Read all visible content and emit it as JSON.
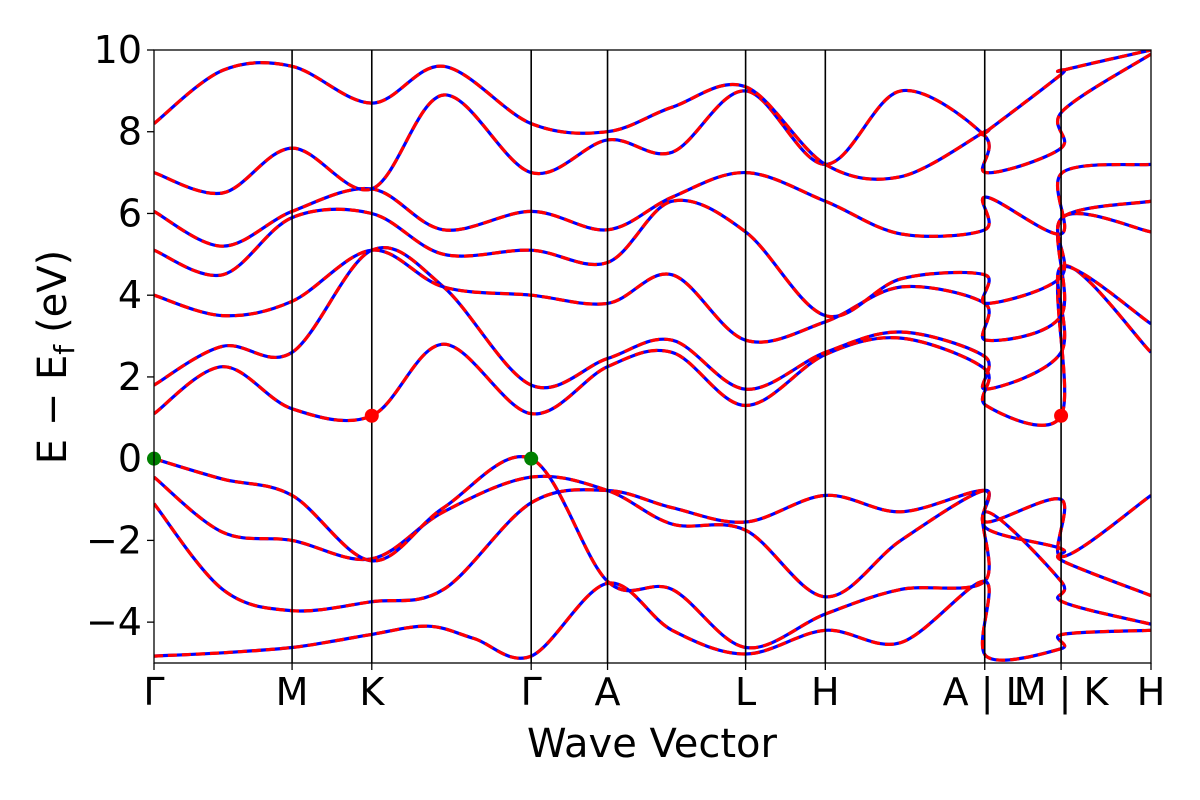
{
  "chart_data": {
    "type": "line",
    "title": "",
    "xlabel": "Wave Vector",
    "ylabel": "E − E",
    "ylabel_subscript": "f",
    "ylabel_unit": "(eV)",
    "ylim": [
      -5,
      10
    ],
    "yticks": [
      -4,
      -2,
      0,
      2,
      4,
      6,
      8,
      10
    ],
    "ytick_labels": [
      "−4",
      "−2",
      "0",
      "2",
      "4",
      "6",
      "8",
      "10"
    ],
    "xlim": [
      0,
      6.542
    ],
    "high_symmetry_points": [
      {
        "label": "Γ",
        "x": 0.0
      },
      {
        "label": "M",
        "x": 0.906
      },
      {
        "label": "K",
        "x": 1.429
      },
      {
        "label": "Γ",
        "x": 2.475
      },
      {
        "label": "A",
        "x": 2.976
      },
      {
        "label": "L",
        "x": 3.882
      },
      {
        "label": "H",
        "x": 4.405
      },
      {
        "label": "A | L",
        "x": 5.451
      },
      {
        "label": "M | K",
        "x": 5.952
      },
      {
        "label": "H",
        "x": 6.542
      }
    ],
    "grid": false,
    "line_colors": {
      "spin_up": "#0000ff",
      "spin_down": "#ff0000"
    },
    "band_edges": [
      {
        "kind": "VBM",
        "x": 0.0,
        "y": 0.0,
        "color": "#008000"
      },
      {
        "kind": "VBM",
        "x": 2.475,
        "y": 0.0,
        "color": "#008000"
      },
      {
        "kind": "CBM",
        "x": 1.429,
        "y": 1.05,
        "color": "#ff0000"
      },
      {
        "kind": "CBM",
        "x": 5.952,
        "y": 1.05,
        "color": "#ff0000"
      }
    ],
    "series": [
      {
        "name": "",
        "values": [
          [
            0,
            -4.83
          ],
          [
            0.45,
            -4.75
          ],
          [
            0.906,
            -4.62
          ],
          [
            1.2,
            -4.45
          ],
          [
            1.429,
            -4.3
          ],
          [
            1.8,
            -4.1
          ],
          [
            2.1,
            -4.4
          ],
          [
            2.475,
            -4.83
          ],
          [
            2.976,
            -3.05
          ],
          [
            3.4,
            -4.2
          ],
          [
            3.882,
            -4.78
          ],
          [
            4.405,
            -4.2
          ],
          [
            4.9,
            -4.5
          ],
          [
            5.451,
            -3.0
          ],
          [
            5.46,
            -4.83
          ],
          [
            5.952,
            -4.65
          ],
          [
            5.96,
            -4.3
          ],
          [
            6.542,
            -4.2
          ]
        ]
      },
      {
        "name": "",
        "values": [
          [
            0,
            -1.1
          ],
          [
            0.45,
            -3.2
          ],
          [
            0.906,
            -3.72
          ],
          [
            1.429,
            -3.5
          ],
          [
            1.9,
            -3.2
          ],
          [
            2.475,
            -1.08
          ],
          [
            2.976,
            -0.78
          ],
          [
            3.4,
            -1.2
          ],
          [
            3.882,
            -1.55
          ],
          [
            4.405,
            -0.9
          ],
          [
            4.9,
            -1.3
          ],
          [
            5.451,
            -0.78
          ],
          [
            5.46,
            -1.55
          ],
          [
            5.952,
            -1.0
          ],
          [
            5.96,
            -2.4
          ],
          [
            6.542,
            -0.9
          ]
        ]
      },
      {
        "name": "",
        "values": [
          [
            0,
            -0.45
          ],
          [
            0.45,
            -1.8
          ],
          [
            0.906,
            -2.0
          ],
          [
            1.429,
            -2.45
          ],
          [
            1.9,
            -1.3
          ],
          [
            2.475,
            -0.45
          ],
          [
            2.976,
            -0.78
          ],
          [
            3.4,
            -1.6
          ],
          [
            3.882,
            -1.75
          ],
          [
            4.405,
            -3.38
          ],
          [
            4.9,
            -2.0
          ],
          [
            5.451,
            -0.78
          ],
          [
            5.46,
            -1.7
          ],
          [
            5.952,
            -2.2
          ],
          [
            5.96,
            -2.5
          ],
          [
            6.542,
            -3.35
          ]
        ]
      },
      {
        "name": "",
        "values": [
          [
            0,
            0.0
          ],
          [
            0.45,
            -0.5
          ],
          [
            0.906,
            -0.9
          ],
          [
            1.429,
            -2.5
          ],
          [
            1.9,
            -1.2
          ],
          [
            2.475,
            0.0
          ],
          [
            2.976,
            -3.0
          ],
          [
            3.4,
            -3.2
          ],
          [
            3.882,
            -4.62
          ],
          [
            4.405,
            -3.8
          ],
          [
            4.9,
            -3.2
          ],
          [
            5.451,
            -3.0
          ],
          [
            5.46,
            -1.3
          ],
          [
            5.952,
            -3.0
          ],
          [
            5.96,
            -3.5
          ],
          [
            6.542,
            -4.05
          ]
        ]
      },
      {
        "name": "",
        "values": [
          [
            0,
            1.1
          ],
          [
            0.45,
            2.25
          ],
          [
            0.906,
            1.22
          ],
          [
            1.429,
            1.05
          ],
          [
            1.9,
            2.8
          ],
          [
            2.475,
            1.1
          ],
          [
            2.976,
            2.25
          ],
          [
            3.4,
            2.6
          ],
          [
            3.882,
            1.3
          ],
          [
            4.405,
            2.55
          ],
          [
            4.9,
            2.95
          ],
          [
            5.451,
            2.2
          ],
          [
            5.46,
            1.3
          ],
          [
            5.952,
            1.05
          ],
          [
            5.96,
            4.7
          ],
          [
            6.542,
            2.6
          ]
        ]
      },
      {
        "name": "",
        "values": [
          [
            0,
            1.8
          ],
          [
            0.45,
            2.75
          ],
          [
            0.906,
            2.6
          ],
          [
            1.429,
            5.1
          ],
          [
            1.9,
            4.2
          ],
          [
            2.475,
            1.8
          ],
          [
            2.976,
            2.45
          ],
          [
            3.4,
            2.9
          ],
          [
            3.882,
            1.7
          ],
          [
            4.405,
            2.6
          ],
          [
            4.9,
            3.1
          ],
          [
            5.451,
            2.5
          ],
          [
            5.46,
            1.7
          ],
          [
            5.952,
            2.6
          ],
          [
            5.96,
            4.7
          ],
          [
            6.542,
            3.3
          ]
        ]
      },
      {
        "name": "",
        "values": [
          [
            0,
            4.0
          ],
          [
            0.45,
            3.5
          ],
          [
            0.906,
            3.85
          ],
          [
            1.429,
            5.1
          ],
          [
            1.9,
            4.2
          ],
          [
            2.475,
            4.0
          ],
          [
            2.976,
            3.8
          ],
          [
            3.4,
            4.5
          ],
          [
            3.882,
            2.9
          ],
          [
            4.405,
            3.35
          ],
          [
            4.9,
            4.2
          ],
          [
            5.451,
            3.8
          ],
          [
            5.46,
            2.9
          ],
          [
            5.952,
            3.5
          ],
          [
            5.96,
            5.9
          ],
          [
            6.542,
            5.55
          ]
        ]
      },
      {
        "name": "",
        "values": [
          [
            0,
            5.1
          ],
          [
            0.45,
            4.5
          ],
          [
            0.906,
            5.9
          ],
          [
            1.429,
            6.0
          ],
          [
            1.9,
            5.0
          ],
          [
            2.475,
            5.1
          ],
          [
            2.976,
            4.8
          ],
          [
            3.4,
            6.3
          ],
          [
            3.882,
            5.55
          ],
          [
            4.405,
            3.5
          ],
          [
            4.9,
            4.4
          ],
          [
            5.451,
            4.5
          ],
          [
            5.46,
            3.8
          ],
          [
            5.952,
            4.45
          ],
          [
            5.96,
            5.9
          ],
          [
            6.542,
            6.3
          ]
        ]
      },
      {
        "name": "",
        "values": [
          [
            0,
            6.05
          ],
          [
            0.45,
            5.2
          ],
          [
            0.906,
            6.05
          ],
          [
            1.429,
            6.6
          ],
          [
            1.9,
            5.6
          ],
          [
            2.475,
            6.05
          ],
          [
            2.976,
            5.6
          ],
          [
            3.4,
            6.4
          ],
          [
            3.882,
            7.0
          ],
          [
            4.405,
            6.3
          ],
          [
            4.9,
            5.5
          ],
          [
            5.451,
            5.6
          ],
          [
            5.46,
            6.4
          ],
          [
            5.952,
            5.5
          ],
          [
            5.96,
            7.0
          ],
          [
            6.542,
            7.2
          ]
        ]
      },
      {
        "name": "",
        "values": [
          [
            0,
            7.0
          ],
          [
            0.45,
            6.5
          ],
          [
            0.906,
            7.6
          ],
          [
            1.429,
            6.6
          ],
          [
            1.9,
            8.9
          ],
          [
            2.475,
            7.0
          ],
          [
            2.976,
            7.8
          ],
          [
            3.4,
            7.5
          ],
          [
            3.882,
            9.0
          ],
          [
            4.405,
            7.2
          ],
          [
            4.9,
            9.0
          ],
          [
            5.451,
            7.9
          ],
          [
            5.46,
            7.0
          ],
          [
            5.952,
            7.6
          ],
          [
            5.96,
            8.5
          ],
          [
            6.542,
            9.9
          ]
        ]
      },
      {
        "name": "",
        "values": [
          [
            0,
            8.2
          ],
          [
            0.45,
            9.5
          ],
          [
            0.906,
            9.6
          ],
          [
            1.429,
            8.7
          ],
          [
            1.9,
            9.6
          ],
          [
            2.475,
            8.2
          ],
          [
            2.976,
            8.0
          ],
          [
            3.4,
            8.6
          ],
          [
            3.882,
            9.1
          ],
          [
            4.405,
            7.2
          ],
          [
            4.9,
            6.9
          ],
          [
            5.451,
            8.0
          ],
          [
            5.46,
            8.0
          ],
          [
            5.952,
            9.4
          ],
          [
            5.96,
            9.5
          ],
          [
            6.542,
            10.0
          ]
        ]
      }
    ]
  }
}
